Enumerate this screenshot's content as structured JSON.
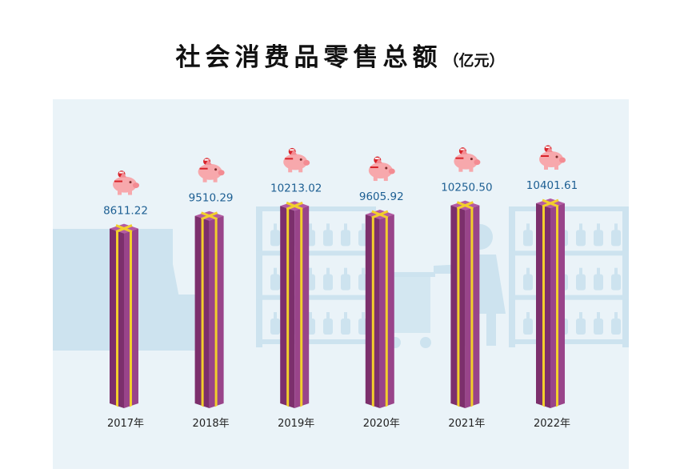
{
  "title": "社会消费品零售总额",
  "unit": "（亿元）",
  "colors": {
    "background_panel": "#eaf3f8",
    "decoration": "#cde3ef",
    "bar_side_dark": "#7c2f6c",
    "bar_side_light": "#99448a",
    "bar_top": "#b45aa2",
    "ribbon": "#f2cf2c",
    "value_label": "#1d5f93",
    "piggy": "#f7a8ac",
    "coin": "#d8232a"
  },
  "chart_data": {
    "type": "bar",
    "title": "社会消费品零售总额",
    "unit": "亿元",
    "categories": [
      "2017年",
      "2018年",
      "2019年",
      "2020年",
      "2021年",
      "2022年"
    ],
    "values": [
      8611.22,
      9510.29,
      10213.02,
      9605.92,
      10250.5,
      10401.61
    ],
    "value_labels": [
      "8611.22",
      "9510.29",
      "10213.02",
      "9605.92",
      "10250.50",
      "10401.61"
    ],
    "icon": "piggy-bank-icon",
    "grid": false,
    "legend": "none"
  }
}
